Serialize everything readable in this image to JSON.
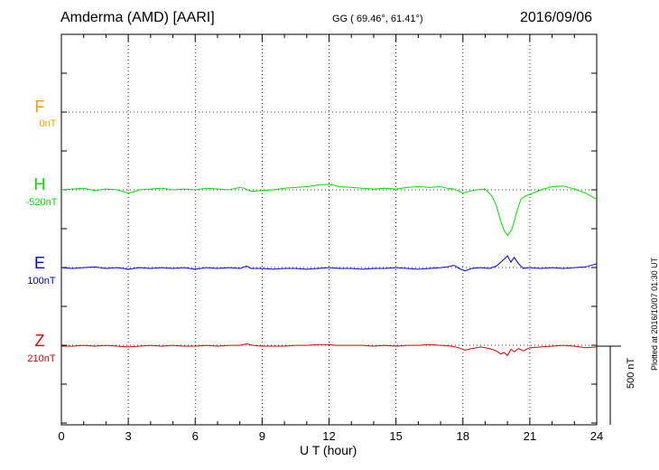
{
  "header": {
    "station": "Amderma (AMD)  [AARI]",
    "coords": "GG ( 69.46°,  61.41°)",
    "date": "2016/09/06"
  },
  "plotted_note": "Plotted at 2016/10/07 01:30 UT",
  "scale_label": "500 nT",
  "chart_data": {
    "type": "line",
    "xlabel": "U T (hour)",
    "xlim": [
      0,
      24
    ],
    "xticks": [
      "0",
      "3",
      "6",
      "9",
      "12",
      "15",
      "18",
      "21",
      "24"
    ],
    "scale_bar_nT": 500,
    "grid": true,
    "series": [
      {
        "name": "F",
        "offset_label": "0nT",
        "color": "#f5a000",
        "x": [],
        "y": []
      },
      {
        "name": "H",
        "offset_label": "-520nT",
        "color": "#00e000",
        "x": [
          0,
          0.5,
          1,
          1.5,
          2,
          2.5,
          3,
          3.2,
          3.5,
          4,
          4.5,
          5,
          5.5,
          6,
          6.5,
          7,
          7.5,
          8,
          8.2,
          8.5,
          9,
          9.5,
          10,
          10.5,
          11,
          11.5,
          12,
          12.5,
          13,
          13.5,
          14,
          14.5,
          15,
          15.5,
          16,
          16.5,
          17,
          17.3,
          17.6,
          18,
          18.3,
          18.6,
          19,
          19.3,
          19.5,
          19.7,
          19.85,
          20,
          20.2,
          20.4,
          20.6,
          20.8,
          21,
          21.5,
          22,
          22.5,
          23,
          23.5,
          24
        ],
        "y": [
          0,
          5,
          10,
          -5,
          5,
          0,
          -20,
          -15,
          0,
          5,
          10,
          0,
          5,
          0,
          10,
          5,
          0,
          15,
          10,
          -10,
          -5,
          0,
          10,
          15,
          20,
          30,
          35,
          20,
          15,
          10,
          5,
          10,
          5,
          15,
          20,
          15,
          20,
          10,
          5,
          -20,
          -10,
          0,
          5,
          -40,
          -100,
          -200,
          -260,
          -290,
          -250,
          -150,
          -60,
          -40,
          -30,
          0,
          20,
          25,
          5,
          -20,
          -60
        ]
      },
      {
        "name": "E",
        "offset_label": "100nT",
        "color": "#0000dd",
        "x": [
          0,
          0.5,
          1,
          1.5,
          2,
          2.5,
          3,
          3.5,
          4,
          4.5,
          5,
          5.5,
          6,
          6.5,
          7,
          7.5,
          8,
          8.3,
          8.5,
          9,
          9.5,
          10,
          10.5,
          11,
          11.5,
          12,
          12.5,
          13,
          13.5,
          14,
          14.5,
          15,
          15.5,
          16,
          16.5,
          17,
          17.3,
          17.6,
          17.9,
          18.1,
          18.4,
          18.8,
          19.2,
          19.5,
          19.7,
          19.85,
          20,
          20.15,
          20.3,
          20.5,
          20.7,
          21,
          21.5,
          22,
          22.5,
          23,
          23.5,
          24
        ],
        "y": [
          5,
          0,
          5,
          10,
          0,
          5,
          -5,
          5,
          0,
          5,
          0,
          5,
          -5,
          5,
          0,
          5,
          0,
          15,
          0,
          0,
          -5,
          0,
          0,
          -5,
          0,
          5,
          0,
          0,
          -5,
          0,
          0,
          5,
          0,
          -5,
          0,
          5,
          10,
          20,
          -5,
          -15,
          0,
          5,
          0,
          15,
          40,
          60,
          80,
          40,
          70,
          30,
          0,
          5,
          0,
          5,
          0,
          5,
          10,
          30
        ]
      },
      {
        "name": "Z",
        "offset_label": "210nT",
        "color": "#dd0000",
        "x": [
          0,
          0.5,
          1,
          1.5,
          2,
          2.5,
          3,
          3.5,
          4,
          4.5,
          5,
          5.5,
          6,
          6.5,
          7,
          7.5,
          8,
          8.3,
          8.6,
          9,
          9.5,
          10,
          10.5,
          11,
          11.5,
          12,
          12.3,
          12.6,
          13,
          13.5,
          14,
          14.5,
          15,
          15.5,
          16,
          16.5,
          17,
          17.5,
          17.8,
          18.1,
          18.4,
          18.8,
          19.2,
          19.5,
          19.7,
          19.85,
          20,
          20.15,
          20.3,
          20.5,
          20.7,
          21,
          21.5,
          22,
          22.5,
          23,
          23.5,
          24
        ],
        "y": [
          0,
          0,
          5,
          0,
          5,
          0,
          -5,
          0,
          5,
          0,
          5,
          0,
          0,
          5,
          0,
          5,
          5,
          15,
          5,
          0,
          0,
          0,
          5,
          5,
          10,
          10,
          5,
          5,
          5,
          5,
          0,
          5,
          0,
          5,
          5,
          10,
          5,
          0,
          -10,
          -25,
          -15,
          -5,
          -15,
          -30,
          -50,
          -40,
          -60,
          -20,
          -35,
          -15,
          -30,
          -10,
          -5,
          0,
          5,
          0,
          -10,
          -5
        ]
      }
    ]
  }
}
